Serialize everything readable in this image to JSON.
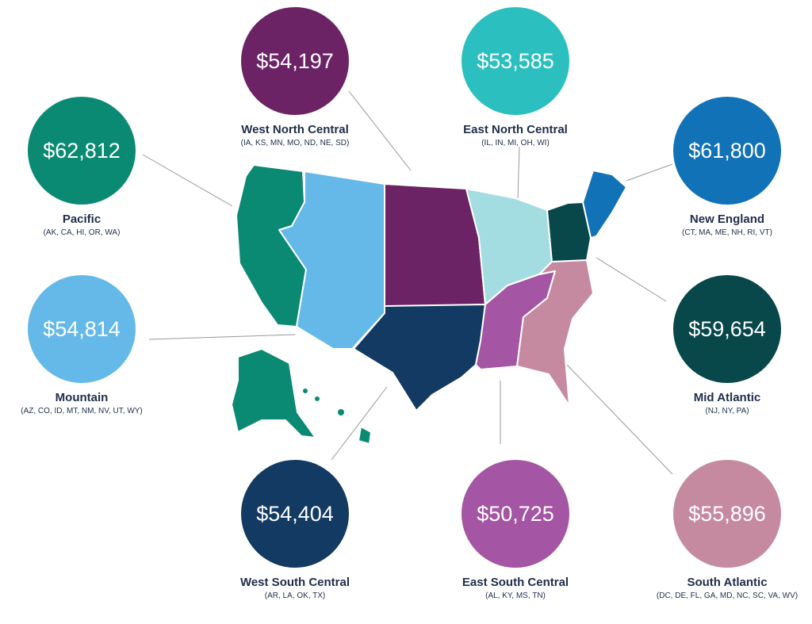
{
  "regions": [
    {
      "id": "west-north-central",
      "name": "West North Central",
      "states": "(IA, KS, MN, MO, ND, NE, SD)",
      "value": "$54,197",
      "color": "#6b2366",
      "map_color": "#6b2366"
    },
    {
      "id": "east-north-central",
      "name": "East North Central",
      "states": "(IL, IN, MI, OH, WI)",
      "value": "$53,585",
      "color": "#2bbfc0",
      "map_color": "#a3dde2"
    },
    {
      "id": "pacific",
      "name": "Pacific",
      "states": "(AK, CA, HI, OR, WA)",
      "value": "$62,812",
      "color": "#0b8a73",
      "map_color": "#0b8a73"
    },
    {
      "id": "new-england",
      "name": "New England",
      "states": "(CT, MA, ME, NH, RI, VT)",
      "value": "$61,800",
      "color": "#1272b8",
      "map_color": "#1272b8"
    },
    {
      "id": "mountain",
      "name": "Mountain",
      "states": "(AZ, CO, ID, MT, NM, NV, UT, WY)",
      "value": "$54,814",
      "color": "#65b9e8",
      "map_color": "#65b9e8"
    },
    {
      "id": "mid-atlantic",
      "name": "Mid Atlantic",
      "states": "(NJ, NY, PA)",
      "value": "$59,654",
      "color": "#08474a",
      "map_color": "#08474a"
    },
    {
      "id": "west-south-central",
      "name": "West South Central",
      "states": "(AR, LA, OK, TX)",
      "value": "$54,404",
      "color": "#133a63",
      "map_color": "#133a63"
    },
    {
      "id": "east-south-central",
      "name": "East South Central",
      "states": "(AL, KY, MS, TN)",
      "value": "$50,725",
      "color": "#a455a3",
      "map_color": "#a455a3"
    },
    {
      "id": "south-atlantic",
      "name": "South Atlantic",
      "states": "(DC, DE, FL, GA, MD, NC, SC, VA, WV)",
      "value": "$55,896",
      "color": "#c68aa0",
      "map_color": "#c68aa0"
    }
  ]
}
